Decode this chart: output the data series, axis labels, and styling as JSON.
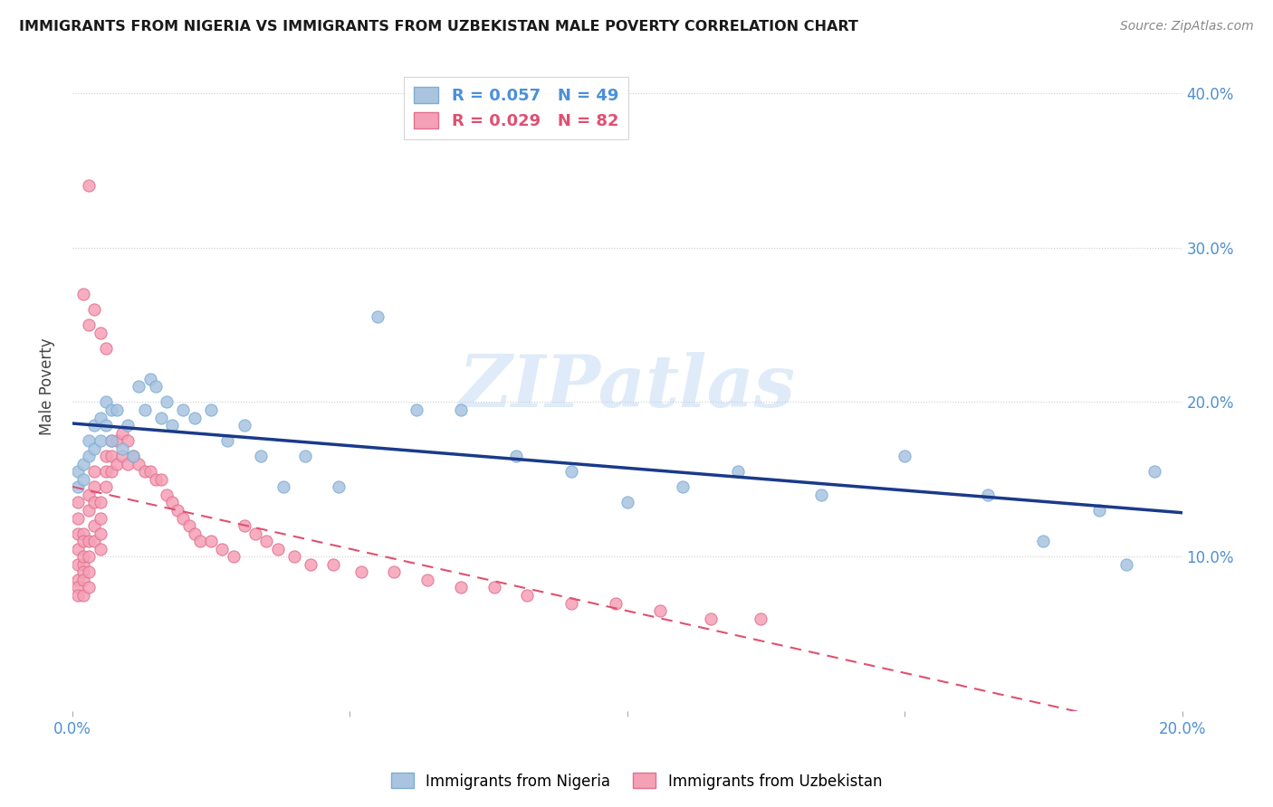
{
  "title": "IMMIGRANTS FROM NIGERIA VS IMMIGRANTS FROM UZBEKISTAN MALE POVERTY CORRELATION CHART",
  "source": "Source: ZipAtlas.com",
  "ylabel": "Male Poverty",
  "xlim": [
    0.0,
    0.2
  ],
  "ylim": [
    0.0,
    0.42
  ],
  "xticks": [
    0.0,
    0.2
  ],
  "yticks": [
    0.1,
    0.2,
    0.3,
    0.4
  ],
  "xtick_labels": [
    "0.0%",
    "20.0%"
  ],
  "ytick_labels": [
    "10.0%",
    "20.0%",
    "30.0%",
    "40.0%"
  ],
  "nigeria_color": "#aac4e0",
  "nigeria_edge": "#7aaed4",
  "uzbekistan_color": "#f5a0b5",
  "uzbekistan_edge": "#e07090",
  "trendline_nigeria_color": "#1a3a8a",
  "trendline_uzbekistan_color": "#e05070",
  "legend_nigeria_label": "R = 0.057   N = 49",
  "legend_uzbekistan_label": "R = 0.029   N = 82",
  "watermark": "ZIPatlas",
  "nigeria_x": [
    0.001,
    0.001,
    0.002,
    0.002,
    0.003,
    0.003,
    0.004,
    0.004,
    0.005,
    0.005,
    0.006,
    0.006,
    0.007,
    0.007,
    0.008,
    0.009,
    0.01,
    0.011,
    0.012,
    0.013,
    0.014,
    0.015,
    0.016,
    0.017,
    0.018,
    0.02,
    0.022,
    0.025,
    0.028,
    0.031,
    0.034,
    0.038,
    0.042,
    0.048,
    0.055,
    0.062,
    0.07,
    0.08,
    0.09,
    0.1,
    0.11,
    0.12,
    0.135,
    0.15,
    0.165,
    0.175,
    0.185,
    0.19,
    0.195
  ],
  "nigeria_y": [
    0.155,
    0.145,
    0.16,
    0.15,
    0.175,
    0.165,
    0.185,
    0.17,
    0.175,
    0.19,
    0.2,
    0.185,
    0.195,
    0.175,
    0.195,
    0.17,
    0.185,
    0.165,
    0.21,
    0.195,
    0.215,
    0.21,
    0.19,
    0.2,
    0.185,
    0.195,
    0.19,
    0.195,
    0.175,
    0.185,
    0.165,
    0.145,
    0.165,
    0.145,
    0.255,
    0.195,
    0.195,
    0.165,
    0.155,
    0.135,
    0.145,
    0.155,
    0.14,
    0.165,
    0.14,
    0.11,
    0.13,
    0.095,
    0.155
  ],
  "uzbekistan_x": [
    0.001,
    0.001,
    0.001,
    0.001,
    0.001,
    0.001,
    0.001,
    0.001,
    0.002,
    0.002,
    0.002,
    0.002,
    0.002,
    0.002,
    0.002,
    0.003,
    0.003,
    0.003,
    0.003,
    0.003,
    0.003,
    0.004,
    0.004,
    0.004,
    0.004,
    0.004,
    0.005,
    0.005,
    0.005,
    0.005,
    0.006,
    0.006,
    0.006,
    0.007,
    0.007,
    0.007,
    0.008,
    0.008,
    0.009,
    0.009,
    0.01,
    0.01,
    0.011,
    0.012,
    0.013,
    0.014,
    0.015,
    0.016,
    0.017,
    0.018,
    0.019,
    0.02,
    0.021,
    0.022,
    0.023,
    0.025,
    0.027,
    0.029,
    0.031,
    0.033,
    0.035,
    0.037,
    0.04,
    0.043,
    0.047,
    0.052,
    0.058,
    0.064,
    0.07,
    0.076,
    0.082,
    0.09,
    0.098,
    0.106,
    0.115,
    0.124,
    0.002,
    0.003,
    0.003,
    0.004,
    0.005,
    0.006
  ],
  "uzbekistan_y": [
    0.135,
    0.125,
    0.115,
    0.105,
    0.095,
    0.085,
    0.08,
    0.075,
    0.095,
    0.09,
    0.085,
    0.115,
    0.11,
    0.1,
    0.075,
    0.11,
    0.1,
    0.09,
    0.08,
    0.14,
    0.13,
    0.155,
    0.145,
    0.135,
    0.12,
    0.11,
    0.135,
    0.125,
    0.115,
    0.105,
    0.165,
    0.155,
    0.145,
    0.175,
    0.165,
    0.155,
    0.175,
    0.16,
    0.18,
    0.165,
    0.175,
    0.16,
    0.165,
    0.16,
    0.155,
    0.155,
    0.15,
    0.15,
    0.14,
    0.135,
    0.13,
    0.125,
    0.12,
    0.115,
    0.11,
    0.11,
    0.105,
    0.1,
    0.12,
    0.115,
    0.11,
    0.105,
    0.1,
    0.095,
    0.095,
    0.09,
    0.09,
    0.085,
    0.08,
    0.08,
    0.075,
    0.07,
    0.07,
    0.065,
    0.06,
    0.06,
    0.27,
    0.34,
    0.25,
    0.26,
    0.245,
    0.235
  ]
}
